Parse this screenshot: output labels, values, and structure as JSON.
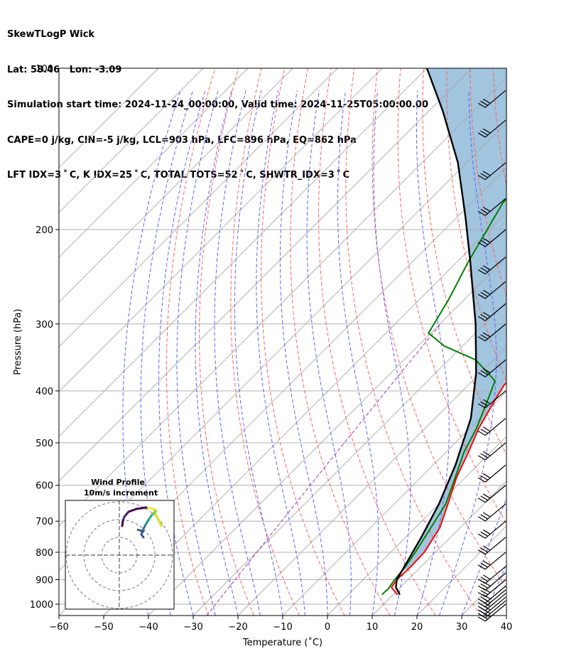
{
  "header": {
    "line1": "SkewTLogP Wick",
    "line2": "Lat: 58.46   Lon: -3.09",
    "line3": "Simulation start time: 2024-11-24_00:00:00, Valid time: 2024-11-25T05:00:00.00",
    "line4": "CAPE=0 j/kg, CIN=-5 j/kg, LCL=903 hPa, LFC=896 hPa, EQ=862 hPa",
    "line5": "LFT IDX=3 ˚ C, K IDX=25 ˚ C, TOTAL TOTS=52 ˚ C, SHWTR_IDX=3 ˚ C"
  },
  "chart_data": {
    "type": "line",
    "xlabel": "Temperature (˚C)",
    "ylabel": "Pressure (hPa)",
    "xlim": [
      -60,
      40
    ],
    "ylim": [
      1050,
      100
    ],
    "y_scale": "log",
    "skew": "skew-T log-P",
    "xticks": [
      "−60",
      "−50",
      "−40",
      "−30",
      "−20",
      "−10",
      "0",
      "10",
      "20",
      "30",
      "40"
    ],
    "yticks": [
      "100",
      "200",
      "300",
      "400",
      "500",
      "600",
      "700",
      "800",
      "900",
      "1000"
    ],
    "grid": true,
    "series": [
      {
        "color": "#ff0000",
        "role": "temperature",
        "points": [
          [
            11,
            960
          ],
          [
            8,
            930
          ],
          [
            7.5,
            900
          ],
          [
            7.7,
            850
          ],
          [
            7.5,
            800
          ],
          [
            5.5,
            720
          ],
          [
            2,
            650
          ],
          [
            -2,
            580
          ],
          [
            -5,
            520
          ],
          [
            -8,
            470
          ],
          [
            -11,
            410
          ],
          [
            -12,
            390
          ],
          [
            -11.5,
            360
          ],
          [
            -9.5,
            325
          ],
          [
            -8,
            300
          ],
          [
            -6,
            270
          ],
          [
            -4,
            240
          ],
          [
            -1,
            210
          ],
          [
            0,
            200
          ],
          [
            0,
            170
          ],
          [
            0,
            150
          ],
          [
            0,
            120
          ],
          [
            0.5,
            100
          ]
        ]
      },
      {
        "color": "#008000",
        "role": "dewpoint",
        "points": [
          [
            7.5,
            960
          ],
          [
            7.6,
            935
          ],
          [
            7,
            900
          ],
          [
            6.5,
            850
          ],
          [
            5.5,
            800
          ],
          [
            3.5,
            720
          ],
          [
            1.5,
            650
          ],
          [
            -2,
            585
          ],
          [
            -6,
            520
          ],
          [
            -8.5,
            470
          ],
          [
            -12,
            420
          ],
          [
            -15,
            383
          ],
          [
            -24,
            350
          ],
          [
            -34,
            330
          ],
          [
            -40.5,
            312
          ],
          [
            -43.5,
            270
          ],
          [
            -47.5,
            230
          ],
          [
            -50.5,
            200
          ],
          [
            -53,
            178
          ],
          [
            -53,
            150
          ],
          [
            -50,
            125
          ],
          [
            -47,
            100
          ]
        ]
      },
      {
        "color": "#000000",
        "role": "parcel",
        "points": [
          [
            11.5,
            960
          ],
          [
            9,
            930
          ],
          [
            7.5,
            900
          ],
          [
            6.5,
            860
          ],
          [
            3.5,
            750
          ],
          [
            0,
            650
          ],
          [
            -5,
            550
          ],
          [
            -12,
            450
          ],
          [
            -21,
            370
          ],
          [
            -32,
            300
          ],
          [
            -47,
            230
          ],
          [
            -58,
            190
          ],
          [
            -72,
            150
          ],
          [
            -87,
            120
          ],
          [
            -100,
            100
          ]
        ]
      }
    ],
    "shaded": {
      "color": "#a1c4df",
      "between": [
        "parcel",
        "temperature"
      ],
      "from_hPa": 862,
      "to_hPa": 100
    },
    "wind_barbs_hPa": [
      1000,
      985,
      970,
      955,
      940,
      925,
      900,
      875,
      850,
      800,
      750,
      700,
      650,
      600,
      550,
      500,
      450,
      400,
      350,
      300,
      275,
      250,
      225,
      200,
      175,
      150,
      125,
      110
    ],
    "inset": {
      "title": "Wind Profile",
      "subtitle": "10m/s increment",
      "rings_ms": [
        10,
        20,
        30
      ]
    }
  }
}
